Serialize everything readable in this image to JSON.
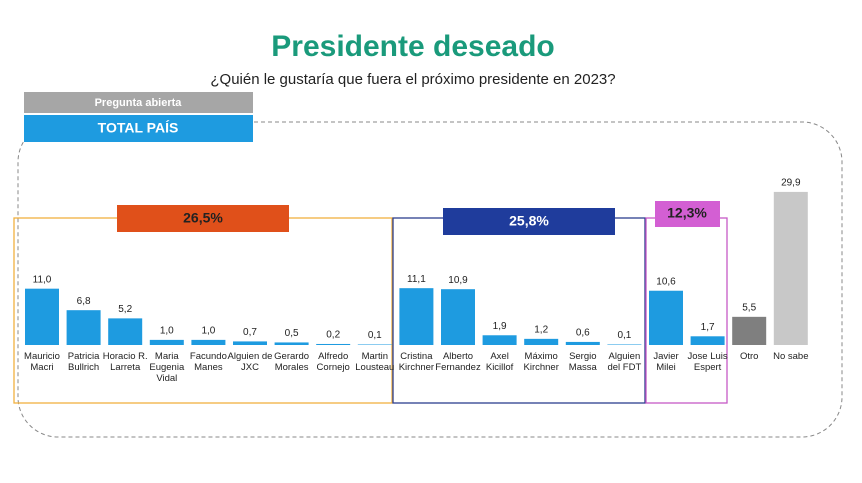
{
  "chart_data": {
    "type": "bar",
    "title": "Presidente deseado",
    "subtitle": "¿Quién le gustaría que fuera el próximo presidente en 2023?",
    "question_type": "Pregunta abierta",
    "scope": "TOTAL PAÍS",
    "group_labels": [
      "26,5%",
      "25,8%",
      "12,3%"
    ],
    "categories": [
      "Mauricio Macri",
      "Patricia Bullrich",
      "Horacio R. Larreta",
      "Maria Eugenia Vidal",
      "Facundo Manes",
      "Alguien de JXC",
      "Gerardo Morales",
      "Alfredo Cornejo",
      "Martin Lousteau",
      "Cristina Kirchner",
      "Alberto Fernandez",
      "Axel Kicillof",
      "Máximo Kirchner",
      "Sergio Massa",
      "Alguien del FDT",
      "Javier Milei",
      "Jose Luis Espert",
      "Otro",
      "No sabe"
    ],
    "values": [
      11.0,
      6.8,
      5.2,
      1.0,
      1.0,
      0.7,
      0.5,
      0.2,
      0.1,
      11.1,
      10.9,
      1.9,
      1.2,
      0.6,
      0.1,
      10.6,
      1.7,
      5.5,
      29.9
    ],
    "value_labels": [
      "11,0",
      "6,8",
      "5,2",
      "1,0",
      "1,0",
      "0,7",
      "0,5",
      "0,2",
      "0,1",
      "11,1",
      "10,9",
      "1,9",
      "1,2",
      "0,6",
      "0,1",
      "10,6",
      "1,7",
      "5,5",
      "29,9"
    ],
    "colors": [
      "#1e9be0",
      "#1e9be0",
      "#1e9be0",
      "#1e9be0",
      "#1e9be0",
      "#1e9be0",
      "#1e9be0",
      "#1e9be0",
      "#1e9be0",
      "#1e9be0",
      "#1e9be0",
      "#1e9be0",
      "#1e9be0",
      "#1e9be0",
      "#1e9be0",
      "#1e9be0",
      "#1e9be0",
      "#7f7f7f",
      "#c8c8c8"
    ]
  }
}
